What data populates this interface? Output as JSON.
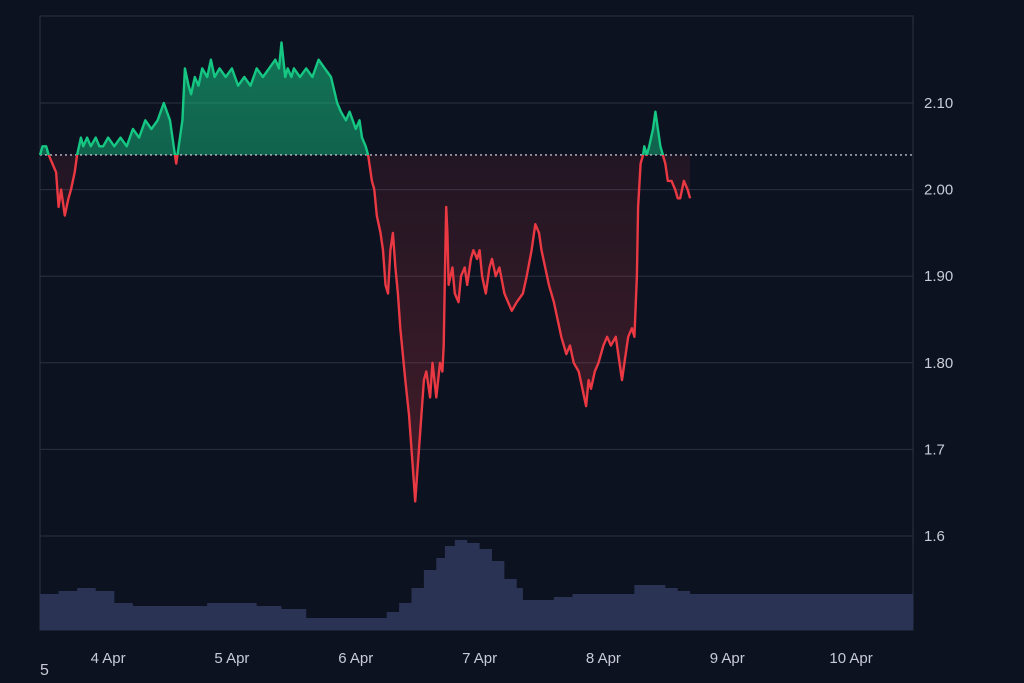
{
  "corner_label": "5",
  "chart_data": {
    "type": "area",
    "baseline": 2.04,
    "y_ticks": [
      {
        "value": 2.1,
        "label": "2.10"
      },
      {
        "value": 2.0,
        "label": "2.00"
      },
      {
        "value": 1.9,
        "label": "1.90"
      },
      {
        "value": 1.8,
        "label": "1.80"
      },
      {
        "value": 1.7,
        "label": "1.7"
      },
      {
        "value": 1.6,
        "label": "1.6"
      }
    ],
    "x_ticks": [
      {
        "value": 4.0,
        "label": "4 Apr"
      },
      {
        "value": 5.0,
        "label": "5 Apr"
      },
      {
        "value": 6.0,
        "label": "6 Apr"
      },
      {
        "value": 7.0,
        "label": "7 Apr"
      },
      {
        "value": 8.0,
        "label": "8 Apr"
      },
      {
        "value": 9.0,
        "label": "9 Apr"
      },
      {
        "value": 10.0,
        "label": "10 Apr"
      }
    ],
    "x_range": [
      3.45,
      10.5
    ],
    "y_range": [
      1.5,
      2.2
    ],
    "colors": {
      "above": "#16c784",
      "below": "#ea3943",
      "volume": "#2a3354",
      "grid": "#2a3142",
      "baseline": "#b8bcc8"
    },
    "price": [
      [
        3.45,
        2.04
      ],
      [
        3.47,
        2.05
      ],
      [
        3.5,
        2.05
      ],
      [
        3.52,
        2.04
      ],
      [
        3.55,
        2.03
      ],
      [
        3.58,
        2.02
      ],
      [
        3.6,
        1.98
      ],
      [
        3.62,
        2.0
      ],
      [
        3.65,
        1.97
      ],
      [
        3.68,
        1.99
      ],
      [
        3.7,
        2.0
      ],
      [
        3.73,
        2.02
      ],
      [
        3.75,
        2.04
      ],
      [
        3.78,
        2.06
      ],
      [
        3.8,
        2.05
      ],
      [
        3.83,
        2.06
      ],
      [
        3.86,
        2.05
      ],
      [
        3.9,
        2.06
      ],
      [
        3.93,
        2.05
      ],
      [
        3.96,
        2.05
      ],
      [
        4.0,
        2.06
      ],
      [
        4.05,
        2.05
      ],
      [
        4.1,
        2.06
      ],
      [
        4.15,
        2.05
      ],
      [
        4.2,
        2.07
      ],
      [
        4.25,
        2.06
      ],
      [
        4.3,
        2.08
      ],
      [
        4.35,
        2.07
      ],
      [
        4.4,
        2.08
      ],
      [
        4.45,
        2.1
      ],
      [
        4.5,
        2.08
      ],
      [
        4.53,
        2.05
      ],
      [
        4.55,
        2.03
      ],
      [
        4.57,
        2.05
      ],
      [
        4.6,
        2.08
      ],
      [
        4.62,
        2.14
      ],
      [
        4.65,
        2.12
      ],
      [
        4.67,
        2.11
      ],
      [
        4.7,
        2.13
      ],
      [
        4.73,
        2.12
      ],
      [
        4.76,
        2.14
      ],
      [
        4.8,
        2.13
      ],
      [
        4.83,
        2.15
      ],
      [
        4.86,
        2.13
      ],
      [
        4.9,
        2.14
      ],
      [
        4.95,
        2.13
      ],
      [
        5.0,
        2.14
      ],
      [
        5.05,
        2.12
      ],
      [
        5.1,
        2.13
      ],
      [
        5.15,
        2.12
      ],
      [
        5.2,
        2.14
      ],
      [
        5.25,
        2.13
      ],
      [
        5.3,
        2.14
      ],
      [
        5.35,
        2.15
      ],
      [
        5.38,
        2.14
      ],
      [
        5.4,
        2.17
      ],
      [
        5.43,
        2.13
      ],
      [
        5.45,
        2.14
      ],
      [
        5.48,
        2.13
      ],
      [
        5.5,
        2.14
      ],
      [
        5.55,
        2.13
      ],
      [
        5.6,
        2.14
      ],
      [
        5.65,
        2.13
      ],
      [
        5.7,
        2.15
      ],
      [
        5.75,
        2.14
      ],
      [
        5.8,
        2.13
      ],
      [
        5.85,
        2.1
      ],
      [
        5.88,
        2.09
      ],
      [
        5.92,
        2.08
      ],
      [
        5.95,
        2.09
      ],
      [
        6.0,
        2.07
      ],
      [
        6.03,
        2.08
      ],
      [
        6.05,
        2.06
      ],
      [
        6.08,
        2.05
      ],
      [
        6.1,
        2.04
      ],
      [
        6.13,
        2.01
      ],
      [
        6.15,
        2.0
      ],
      [
        6.17,
        1.97
      ],
      [
        6.2,
        1.95
      ],
      [
        6.22,
        1.93
      ],
      [
        6.24,
        1.89
      ],
      [
        6.26,
        1.88
      ],
      [
        6.28,
        1.93
      ],
      [
        6.3,
        1.95
      ],
      [
        6.32,
        1.91
      ],
      [
        6.34,
        1.88
      ],
      [
        6.36,
        1.84
      ],
      [
        6.38,
        1.81
      ],
      [
        6.4,
        1.78
      ],
      [
        6.43,
        1.74
      ],
      [
        6.45,
        1.7
      ],
      [
        6.47,
        1.66
      ],
      [
        6.48,
        1.64
      ],
      [
        6.5,
        1.68
      ],
      [
        6.52,
        1.72
      ],
      [
        6.55,
        1.78
      ],
      [
        6.57,
        1.79
      ],
      [
        6.6,
        1.76
      ],
      [
        6.62,
        1.8
      ],
      [
        6.65,
        1.76
      ],
      [
        6.68,
        1.8
      ],
      [
        6.7,
        1.79
      ],
      [
        6.71,
        1.82
      ],
      [
        6.72,
        1.9
      ],
      [
        6.73,
        1.98
      ],
      [
        6.74,
        1.95
      ],
      [
        6.75,
        1.89
      ],
      [
        6.78,
        1.91
      ],
      [
        6.8,
        1.88
      ],
      [
        6.83,
        1.87
      ],
      [
        6.85,
        1.9
      ],
      [
        6.88,
        1.91
      ],
      [
        6.9,
        1.89
      ],
      [
        6.93,
        1.92
      ],
      [
        6.95,
        1.93
      ],
      [
        6.98,
        1.92
      ],
      [
        7.0,
        1.93
      ],
      [
        7.02,
        1.9
      ],
      [
        7.05,
        1.88
      ],
      [
        7.08,
        1.91
      ],
      [
        7.1,
        1.92
      ],
      [
        7.13,
        1.9
      ],
      [
        7.16,
        1.91
      ],
      [
        7.2,
        1.88
      ],
      [
        7.23,
        1.87
      ],
      [
        7.26,
        1.86
      ],
      [
        7.3,
        1.87
      ],
      [
        7.35,
        1.88
      ],
      [
        7.38,
        1.9
      ],
      [
        7.42,
        1.93
      ],
      [
        7.45,
        1.96
      ],
      [
        7.48,
        1.95
      ],
      [
        7.5,
        1.93
      ],
      [
        7.53,
        1.91
      ],
      [
        7.56,
        1.89
      ],
      [
        7.6,
        1.87
      ],
      [
        7.63,
        1.85
      ],
      [
        7.66,
        1.83
      ],
      [
        7.7,
        1.81
      ],
      [
        7.73,
        1.82
      ],
      [
        7.76,
        1.8
      ],
      [
        7.8,
        1.79
      ],
      [
        7.83,
        1.77
      ],
      [
        7.86,
        1.75
      ],
      [
        7.88,
        1.78
      ],
      [
        7.9,
        1.77
      ],
      [
        7.93,
        1.79
      ],
      [
        7.96,
        1.8
      ],
      [
        8.0,
        1.82
      ],
      [
        8.03,
        1.83
      ],
      [
        8.06,
        1.82
      ],
      [
        8.1,
        1.83
      ],
      [
        8.13,
        1.8
      ],
      [
        8.15,
        1.78
      ],
      [
        8.18,
        1.81
      ],
      [
        8.2,
        1.83
      ],
      [
        8.23,
        1.84
      ],
      [
        8.25,
        1.83
      ],
      [
        8.27,
        1.9
      ],
      [
        8.28,
        1.98
      ],
      [
        8.3,
        2.03
      ],
      [
        8.32,
        2.04
      ],
      [
        8.33,
        2.05
      ],
      [
        8.35,
        2.04
      ],
      [
        8.37,
        2.05
      ],
      [
        8.4,
        2.07
      ],
      [
        8.42,
        2.09
      ],
      [
        8.44,
        2.07
      ],
      [
        8.46,
        2.05
      ],
      [
        8.48,
        2.04
      ],
      [
        8.5,
        2.03
      ],
      [
        8.52,
        2.01
      ],
      [
        8.55,
        2.01
      ],
      [
        8.58,
        2.0
      ],
      [
        8.6,
        1.99
      ],
      [
        8.62,
        1.99
      ],
      [
        8.65,
        2.01
      ],
      [
        8.68,
        2.0
      ],
      [
        8.7,
        1.99
      ]
    ],
    "volume": [
      [
        3.45,
        0.12
      ],
      [
        3.6,
        0.13
      ],
      [
        3.75,
        0.14
      ],
      [
        3.9,
        0.13
      ],
      [
        4.05,
        0.09
      ],
      [
        4.2,
        0.08
      ],
      [
        4.4,
        0.08
      ],
      [
        4.6,
        0.08
      ],
      [
        4.8,
        0.09
      ],
      [
        5.0,
        0.09
      ],
      [
        5.2,
        0.08
      ],
      [
        5.4,
        0.07
      ],
      [
        5.6,
        0.04
      ],
      [
        5.8,
        0.04
      ],
      [
        6.0,
        0.04
      ],
      [
        6.15,
        0.04
      ],
      [
        6.25,
        0.06
      ],
      [
        6.35,
        0.09
      ],
      [
        6.45,
        0.14
      ],
      [
        6.55,
        0.2
      ],
      [
        6.65,
        0.24
      ],
      [
        6.72,
        0.28
      ],
      [
        6.8,
        0.3
      ],
      [
        6.9,
        0.29
      ],
      [
        7.0,
        0.27
      ],
      [
        7.1,
        0.23
      ],
      [
        7.2,
        0.17
      ],
      [
        7.3,
        0.14
      ],
      [
        7.35,
        0.1
      ],
      [
        7.45,
        0.1
      ],
      [
        7.6,
        0.11
      ],
      [
        7.75,
        0.12
      ],
      [
        7.9,
        0.12
      ],
      [
        8.0,
        0.12
      ],
      [
        8.1,
        0.12
      ],
      [
        8.2,
        0.12
      ],
      [
        8.25,
        0.15
      ],
      [
        8.35,
        0.15
      ],
      [
        8.5,
        0.14
      ],
      [
        8.6,
        0.13
      ],
      [
        8.7,
        0.12
      ]
    ]
  }
}
